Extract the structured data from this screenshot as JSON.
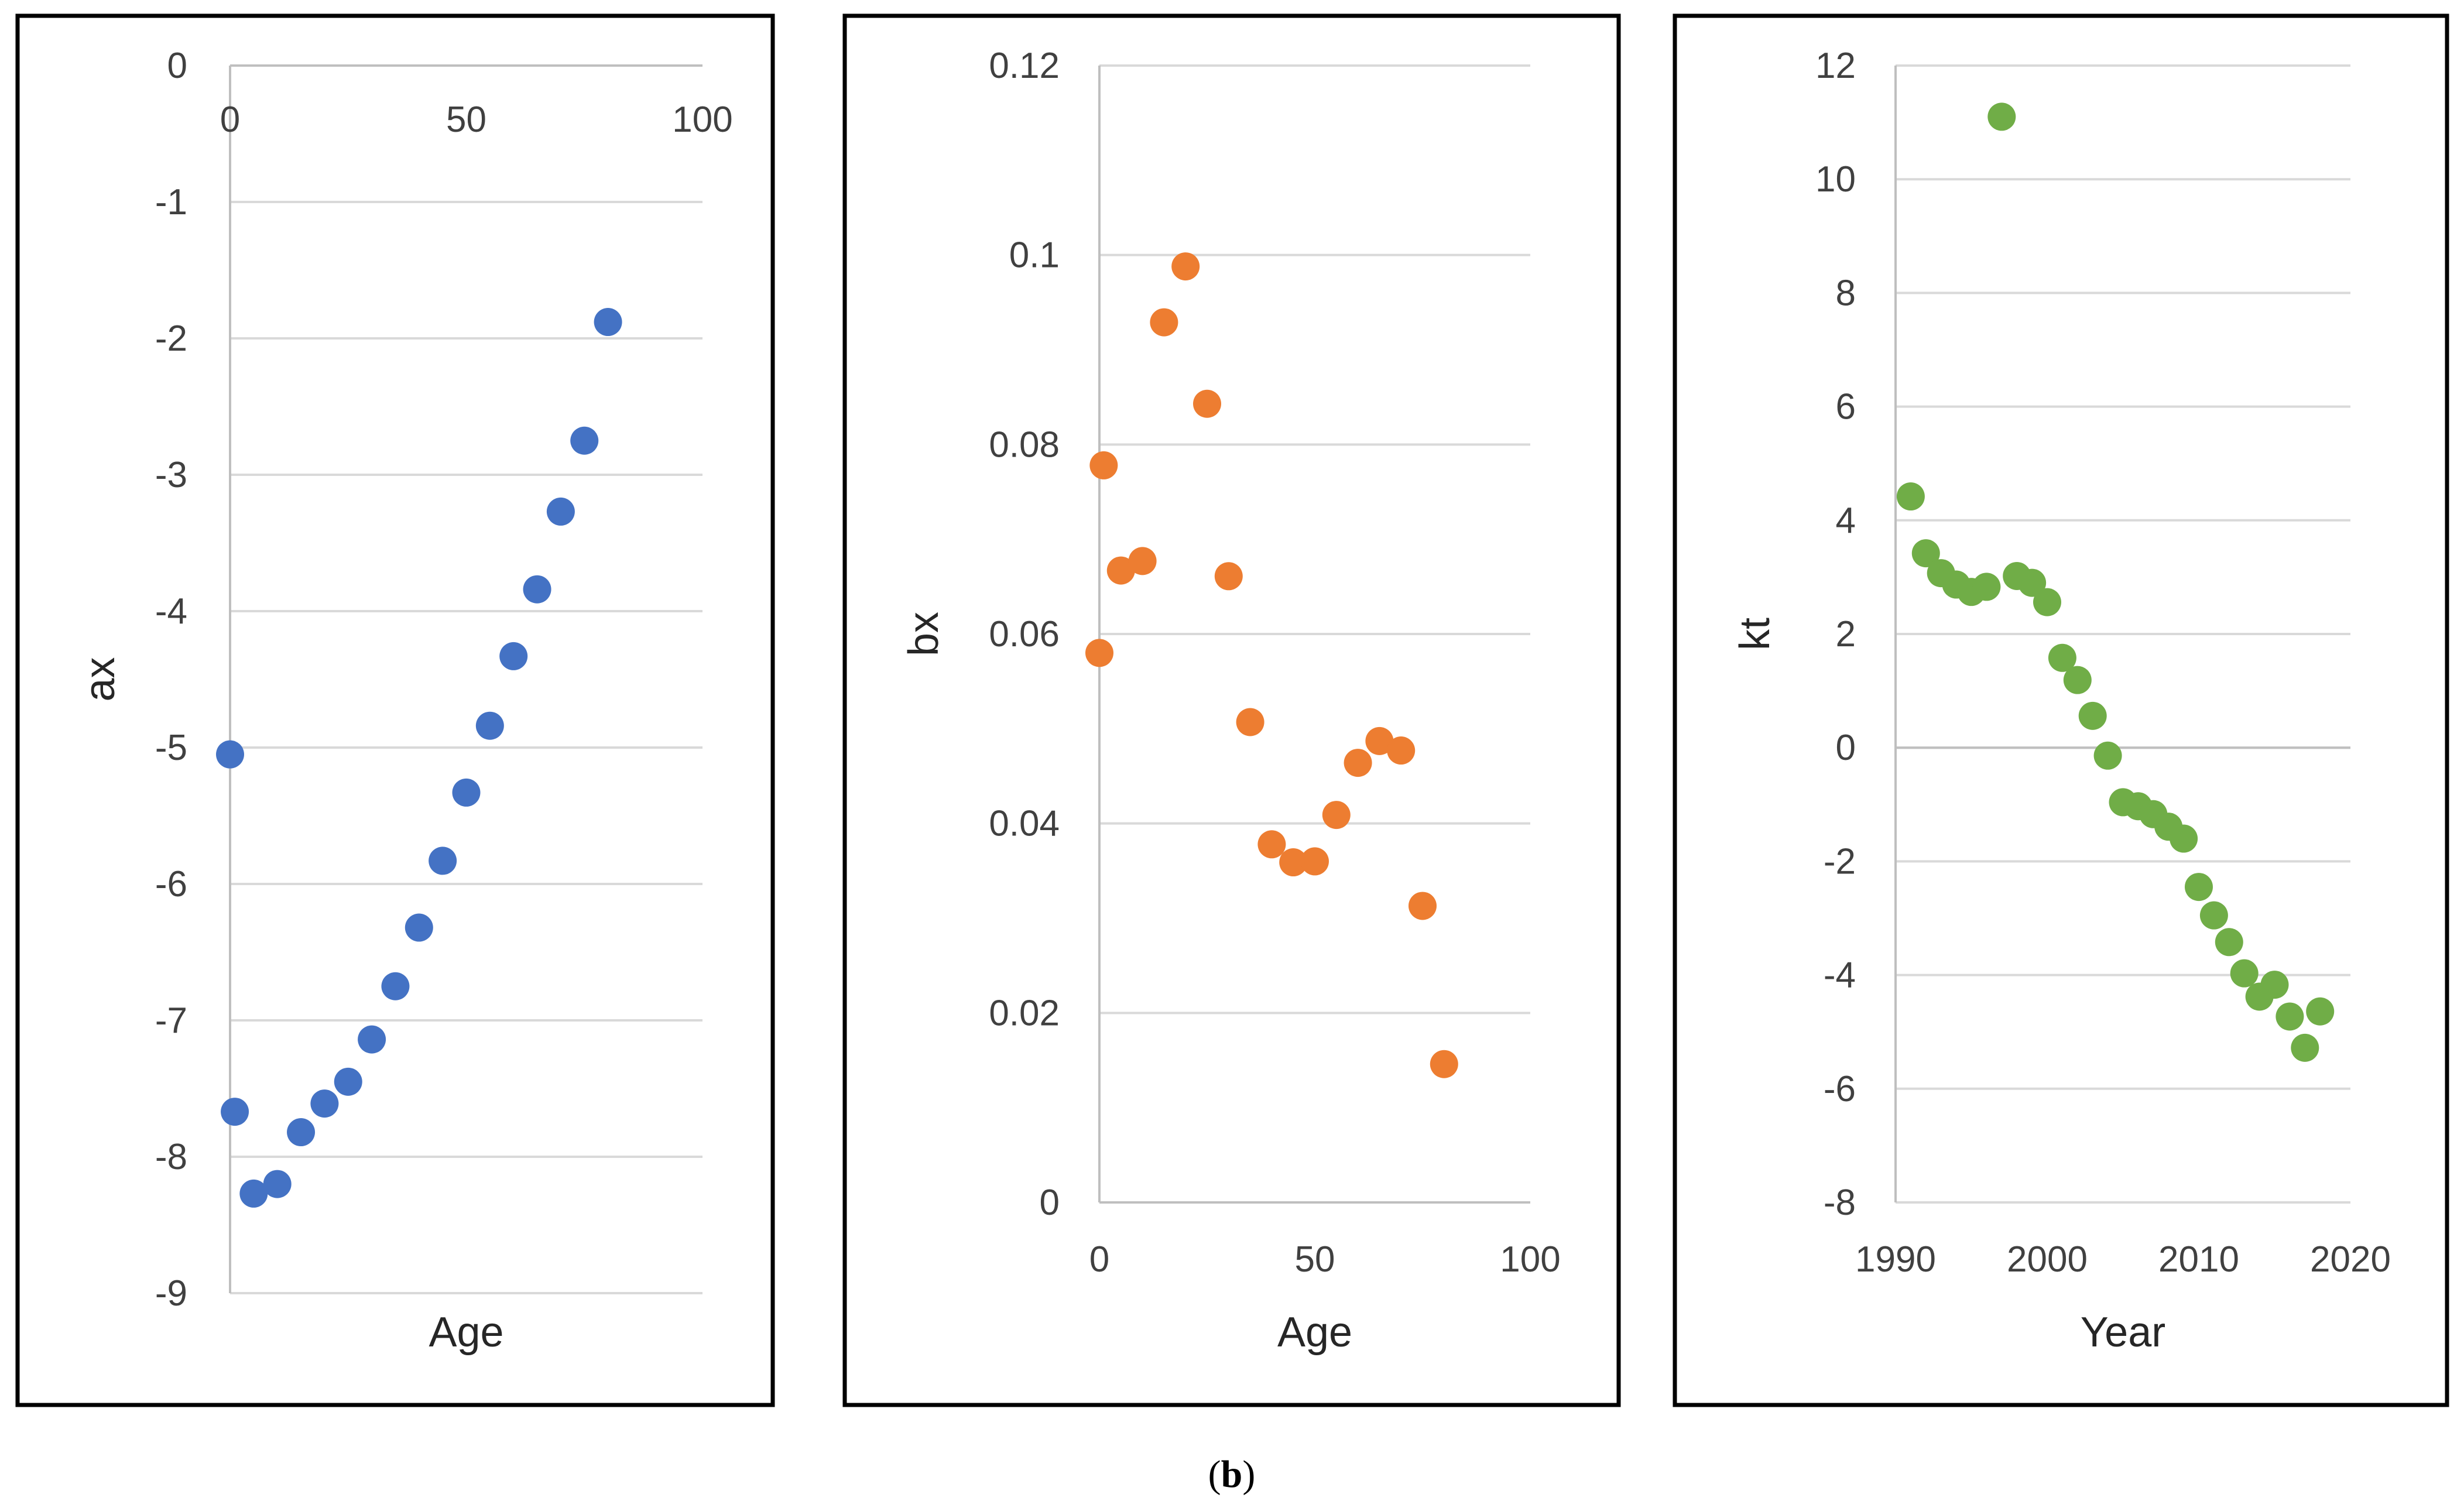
{
  "caption": {
    "open": "(",
    "label": "b",
    "close": ")"
  },
  "chart_data": [
    {
      "type": "scatter",
      "title": "",
      "xlabel": "Age",
      "ylabel": "ax",
      "xlim": [
        0,
        100
      ],
      "ylim": [
        -9,
        0
      ],
      "xticks": [
        0,
        50,
        100
      ],
      "yticks": [
        0,
        -1,
        -2,
        -3,
        -4,
        -5,
        -6,
        -7,
        -8,
        -9
      ],
      "x_axis_position": "top",
      "grid": true,
      "color": "#4472C4",
      "series": [
        {
          "name": "ax",
          "x": [
            0,
            1,
            5,
            10,
            15,
            20,
            25,
            30,
            35,
            40,
            45,
            50,
            55,
            60,
            65,
            70,
            75,
            80
          ],
          "y": [
            -5.05,
            -7.67,
            -8.27,
            -8.2,
            -7.82,
            -7.61,
            -7.45,
            -7.14,
            -6.75,
            -6.32,
            -5.83,
            -5.33,
            -4.84,
            -4.33,
            -3.84,
            -3.27,
            -2.75,
            -1.88
          ]
        }
      ]
    },
    {
      "type": "scatter",
      "title": "",
      "xlabel": "Age",
      "ylabel": "bx",
      "xlim": [
        0,
        100
      ],
      "ylim": [
        0,
        0.12
      ],
      "xticks": [
        0,
        50,
        100
      ],
      "yticks": [
        0,
        0.02,
        0.04,
        0.06,
        0.08,
        0.1,
        0.12
      ],
      "grid": true,
      "color": "#ED7D31",
      "series": [
        {
          "name": "bx",
          "x": [
            0,
            1,
            5,
            10,
            15,
            20,
            25,
            30,
            35,
            40,
            45,
            50,
            55,
            60,
            65,
            70,
            75,
            80
          ],
          "y": [
            0.058,
            0.0778,
            0.0667,
            0.0677,
            0.0929,
            0.0988,
            0.0843,
            0.0661,
            0.0507,
            0.0378,
            0.0359,
            0.036,
            0.0409,
            0.0464,
            0.0487,
            0.0477,
            0.0313,
            0.0146
          ]
        }
      ]
    },
    {
      "type": "scatter",
      "title": "",
      "xlabel": "Year",
      "ylabel": "kt",
      "xlim": [
        1990,
        2020
      ],
      "ylim": [
        -8,
        12
      ],
      "xticks": [
        1990,
        2000,
        2010,
        2020
      ],
      "yticks": [
        12,
        10,
        8,
        6,
        4,
        2,
        0,
        -2,
        -4,
        -6,
        -8
      ],
      "grid": true,
      "color": "#70AD47",
      "series": [
        {
          "name": "kt",
          "x": [
            1991,
            1992,
            1993,
            1994,
            1995,
            1996,
            1997,
            1998,
            1999,
            2000,
            2001,
            2002,
            2003,
            2004,
            2005,
            2006,
            2007,
            2008,
            2009,
            2010,
            2011,
            2012,
            2013,
            2014,
            2015,
            2016,
            2017,
            2018
          ],
          "y": [
            4.42,
            3.42,
            3.07,
            2.87,
            2.74,
            2.83,
            11.1,
            3.02,
            2.9,
            2.56,
            1.58,
            1.19,
            0.56,
            -0.14,
            -0.96,
            -1.03,
            -1.17,
            -1.39,
            -1.6,
            -2.45,
            -2.95,
            -3.42,
            -3.97,
            -4.38,
            -4.17,
            -4.73,
            -5.28,
            -4.64
          ]
        }
      ]
    }
  ]
}
